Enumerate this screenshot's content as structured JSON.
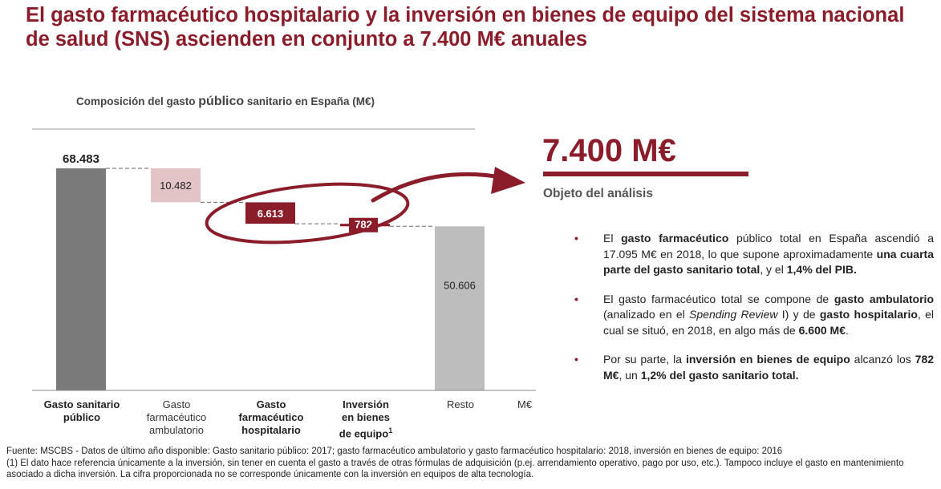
{
  "title": "El gasto farmacéutico hospitalario y la inversión en bienes de equipo del sistema nacional de salud (SNS) ascienden en conjunto a 7.400 M€ anuales",
  "chart_title": {
    "prefix": "Composición del gasto ",
    "emph": "público",
    "suffix": " sanitario en España (M€)"
  },
  "chart_data": {
    "type": "bar",
    "subtype": "waterfall",
    "title": "Composición del gasto público sanitario en España (M€)",
    "unit": "M€",
    "categories": [
      "Gasto sanitario público",
      "Gasto farmacéutico ambulatorio",
      "Gasto farmacéutico hospitalario",
      "Inversión en bienes de equipo¹",
      "Resto"
    ],
    "values": [
      68483,
      10482,
      6613,
      782,
      50606
    ],
    "value_labels": [
      "68.483",
      "10.482",
      "6.613",
      "782",
      "50.606"
    ],
    "bases": [
      0,
      58001,
      51388,
      50606,
      0
    ],
    "bar_colors": [
      "#7a7a7a",
      "#e3c4c6",
      "#8b1d2b",
      "#8b1d2b",
      "#bdbdbd"
    ],
    "highlighted": [
      "Gasto farmacéutico hospitalario",
      "Inversión en bienes de equipo¹"
    ],
    "ylim": [
      0,
      68483
    ]
  },
  "categories": [
    {
      "lines": [
        "Gasto sanitario",
        "público"
      ]
    },
    {
      "lines": [
        "Gasto",
        "farmacéutico",
        "ambulatorio"
      ]
    },
    {
      "lines": [
        "Gasto",
        "farmacéutico",
        "hospitalario"
      ]
    },
    {
      "lines": [
        "Inversión",
        "en bienes",
        "de equipo"
      ],
      "sup": "1"
    },
    {
      "lines": [
        "Resto"
      ]
    }
  ],
  "unit_label": "M€",
  "highlight": {
    "total": "7.400 M€",
    "subtitle": "Objeto del análisis"
  },
  "bullets": [
    [
      {
        "t": "El "
      },
      {
        "t": "gasto farmacéutico",
        "b": true
      },
      {
        "t": " público total en España ascendió a 17.095 M€ en 2018, lo que supone aproximadamente "
      },
      {
        "t": "una cuarta parte del gasto sanitario total",
        "b": true
      },
      {
        "t": ", y el "
      },
      {
        "t": "1,4% del PIB.",
        "b": true
      }
    ],
    [
      {
        "t": "El gasto farmacéutico total se compone de "
      },
      {
        "t": "gasto ambulatorio",
        "b": true
      },
      {
        "t": " (analizado en el "
      },
      {
        "t": "Spending Review",
        "i": true
      },
      {
        "t": " I) y de "
      },
      {
        "t": "gasto hospitalario",
        "b": true
      },
      {
        "t": ", el cual se situó, en 2018, en algo más de "
      },
      {
        "t": "6.600 M€",
        "b": true
      },
      {
        "t": "."
      }
    ],
    [
      {
        "t": "Por su parte, la "
      },
      {
        "t": "inversión en bienes de equipo",
        "b": true
      },
      {
        "t": " alcanzó los "
      },
      {
        "t": "782 M€",
        "b": true
      },
      {
        "t": ", un "
      },
      {
        "t": "1,2% del gasto sanitario total.",
        "b": true
      }
    ]
  ],
  "footnotes": [
    "Fuente: MSCBS - Datos de último año disponible: Gasto sanitario público: 2017; gasto farmacéutico ambulatorio y gasto farmacéutico hospitalario: 2018, inversión en bienes de equipo: 2016",
    "(1) El dato hace referencia únicamente a la inversión, sin tener en cuenta el gasto a través de otras fórmulas de adquisición (p.ej. arrendamiento operativo, pago por uso, etc.). Tampoco incluye el gasto en mantenimiento asociado a dicha inversión. La cifra proporcionada no se corresponde únicamente con la inversión en equipos de alta tecnología."
  ],
  "colors": {
    "accent": "#8b1d2b",
    "total_bar": "#7a7a7a",
    "ambulatorio_bar": "#e3c4c6",
    "resto_bar": "#bdbdbd"
  }
}
